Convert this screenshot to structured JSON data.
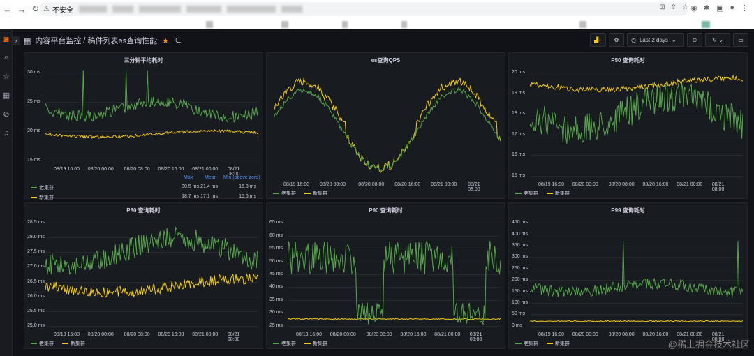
{
  "browser": {
    "security_label": "不安全"
  },
  "breadcrumb": {
    "folder": "内容平台监控",
    "separator": "/",
    "title": "稿件列表es查询性能"
  },
  "toolbar": {
    "time_range": "Last 2 days"
  },
  "colors": {
    "old_cluster": "#56a64b",
    "new_cluster": "#f2cc0c",
    "legend_header": "#5794f2"
  },
  "series_names": [
    "老集群",
    "新集群"
  ],
  "xticks": [
    "08/19 16:00",
    "08/20 00:00",
    "08/20 08:00",
    "08/20 16:00",
    "08/21 00:00",
    "08/21 08:00"
  ],
  "panels": [
    {
      "title": "三分钟平均耗时",
      "yticks": [
        "30 ms",
        "25 ms",
        "20 ms",
        "15 ms"
      ],
      "legend_table": {
        "headers": [
          "Max",
          "Mean",
          "Min (above zero)"
        ],
        "rows": [
          {
            "name": "老集群",
            "max": "30.5 ms",
            "mean": "21.4 ms",
            "min": "16.3 ms"
          },
          {
            "name": "新集群",
            "max": "18.7 ms",
            "mean": "17.1 ms",
            "min": "15.6 ms"
          }
        ]
      }
    },
    {
      "title": "es查询QPS",
      "yticks": []
    },
    {
      "title": "P50 查询耗时",
      "yticks": [
        "20 ms",
        "19 ms",
        "18 ms",
        "17 ms",
        "16 ms",
        "15 ms"
      ]
    },
    {
      "title": "P80 查询耗时",
      "yticks": [
        "28.5 ms",
        "28.0 ms",
        "27.5 ms",
        "27.0 ms",
        "26.5 ms",
        "26.0 ms",
        "25.5 ms",
        "25.0 ms"
      ]
    },
    {
      "title": "P90 查询耗时",
      "yticks": [
        "65 ms",
        "60 ms",
        "55 ms",
        "50 ms",
        "45 ms",
        "40 ms",
        "35 ms",
        "30 ms",
        "25 ms"
      ]
    },
    {
      "title": "P99 查询耗时",
      "yticks": [
        "450 ms",
        "400 ms",
        "350 ms",
        "300 ms",
        "250 ms",
        "200 ms",
        "150 ms",
        "100 ms",
        "50 ms",
        "0 ms"
      ]
    }
  ],
  "watermark": "@稀土掘金技术社区"
}
